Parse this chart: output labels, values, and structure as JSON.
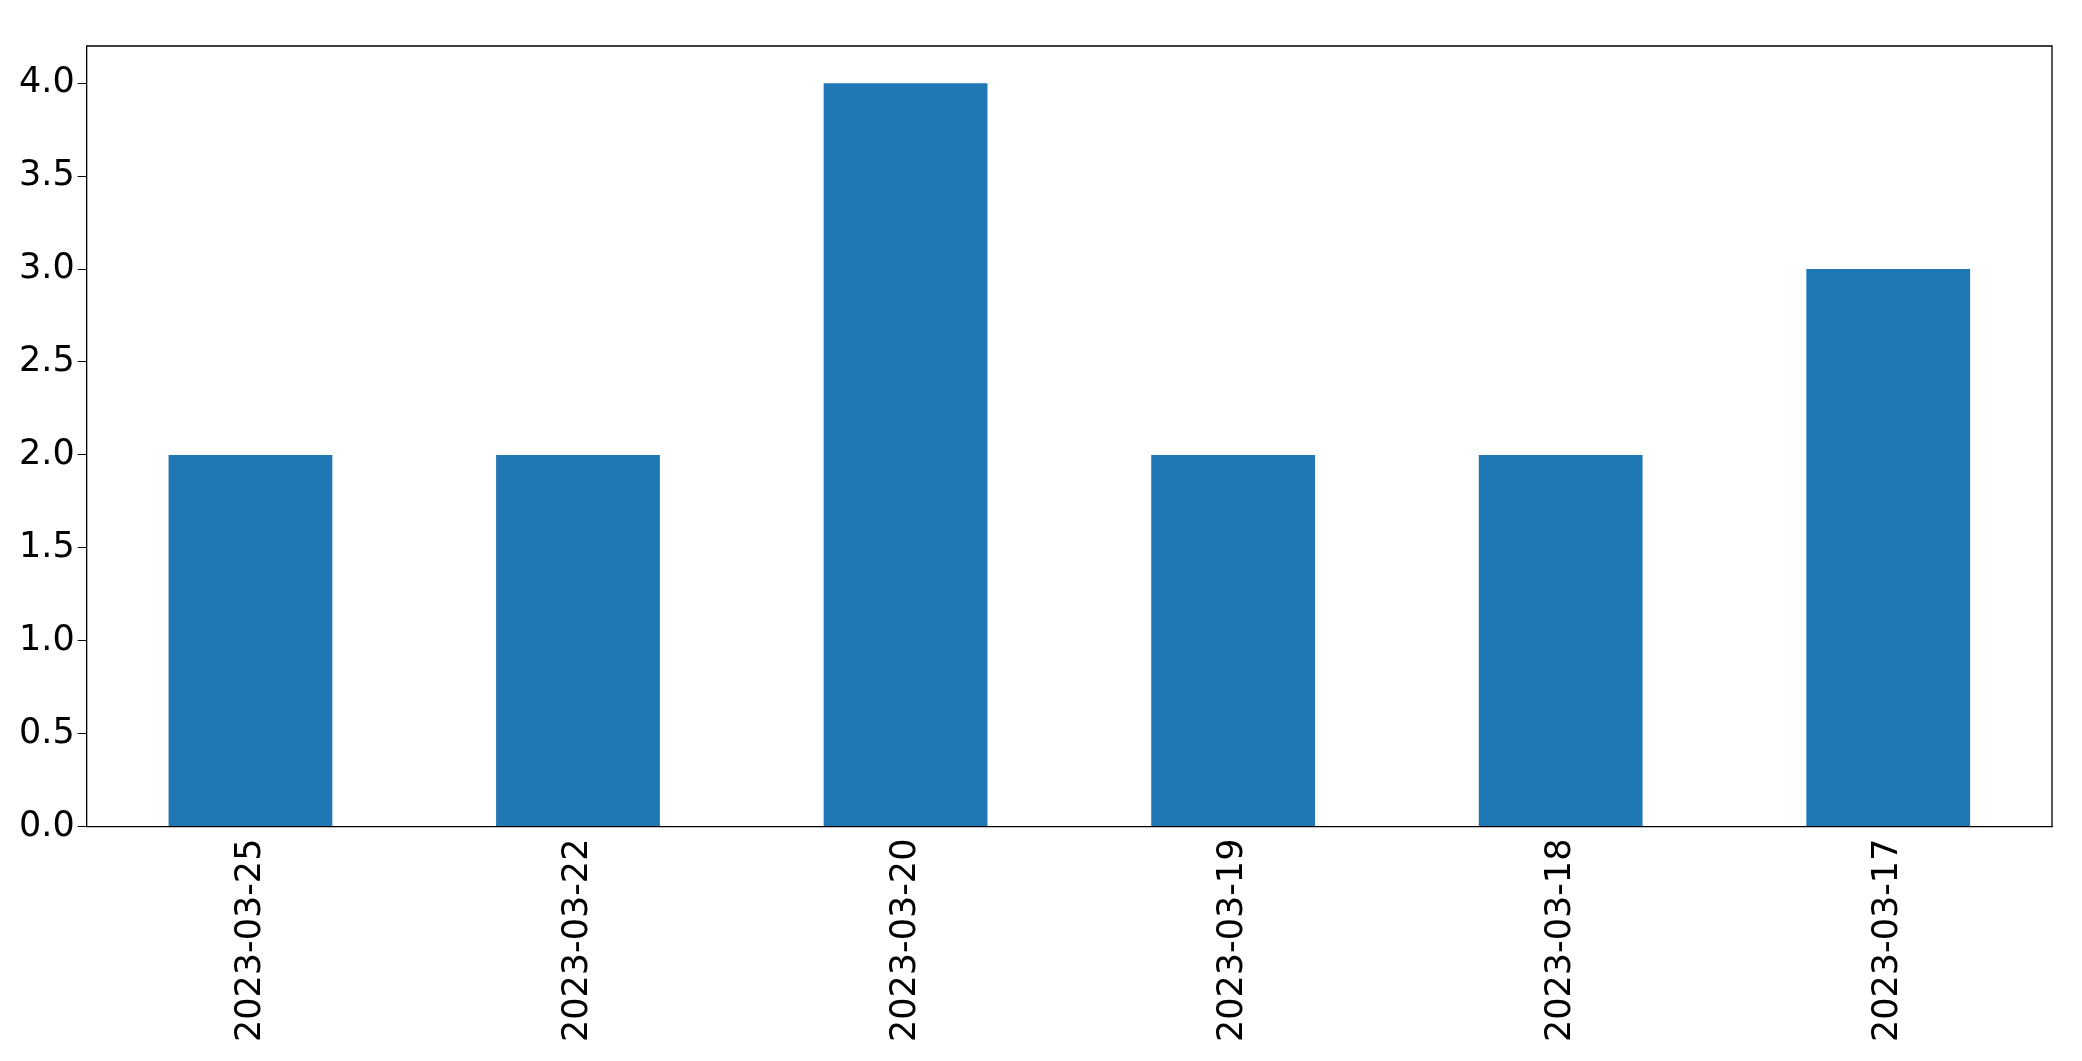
{
  "chart_data": {
    "type": "bar",
    "categories": [
      "2023-03-25",
      "2023-03-22",
      "2023-03-20",
      "2023-03-19",
      "2023-03-18",
      "2023-03-17"
    ],
    "values": [
      2,
      2,
      4,
      2,
      2,
      3
    ],
    "color": "#1f77b4",
    "ylim": [
      0,
      4.2
    ],
    "yticks": [
      {
        "value": 0,
        "label": "0.0"
      },
      0.5,
      {
        "value": 1,
        "label": "1.0"
      },
      1.5,
      {
        "value": 2,
        "label": "2.0"
      },
      2.5,
      {
        "value": 3,
        "label": "3.0"
      },
      3.5,
      {
        "value": 4,
        "label": "4.0"
      }
    ],
    "grid": false,
    "legend": false
  }
}
